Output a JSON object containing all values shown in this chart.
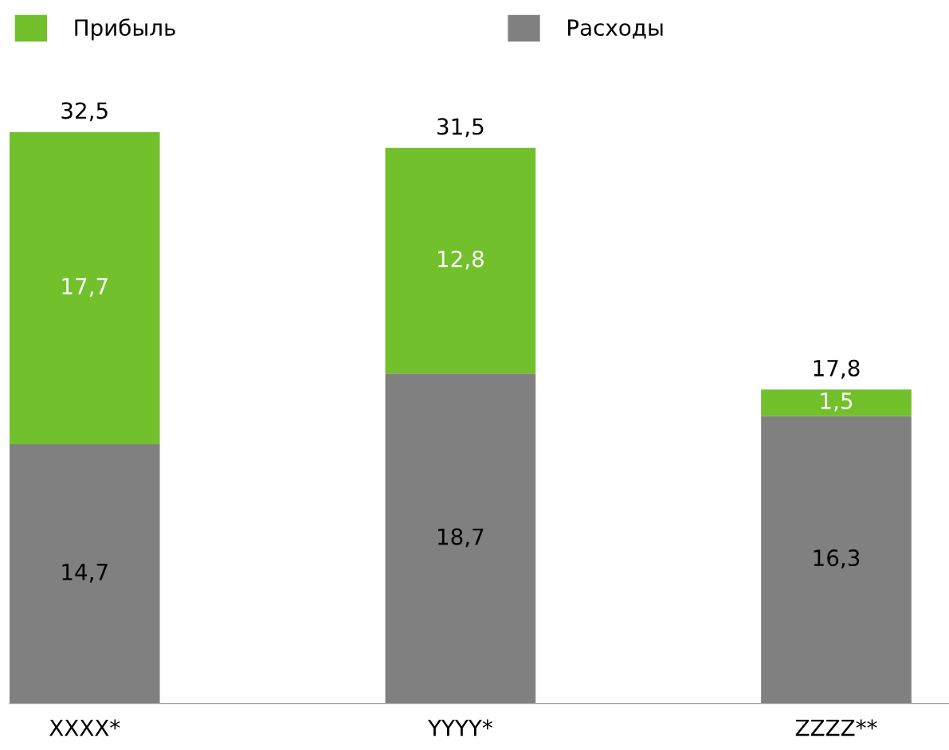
{
  "chart_data": {
    "type": "bar",
    "stacked": true,
    "categories": [
      "XXXX*",
      "YYYY*",
      "ZZZZ**"
    ],
    "series": [
      {
        "name": "Расходы",
        "color": "#808080",
        "values": [
          14.7,
          18.7,
          16.3
        ],
        "value_labels": [
          "14,7",
          "18,7",
          "16,3"
        ]
      },
      {
        "name": "Прибыль",
        "color": "#72c02c",
        "values": [
          17.7,
          12.8,
          1.5
        ],
        "value_labels": [
          "17,7",
          "12,8",
          "1,5"
        ]
      }
    ],
    "totals": [
      "32,5",
      "31,5",
      "17,8"
    ],
    "legend": "top left",
    "grid": false
  }
}
